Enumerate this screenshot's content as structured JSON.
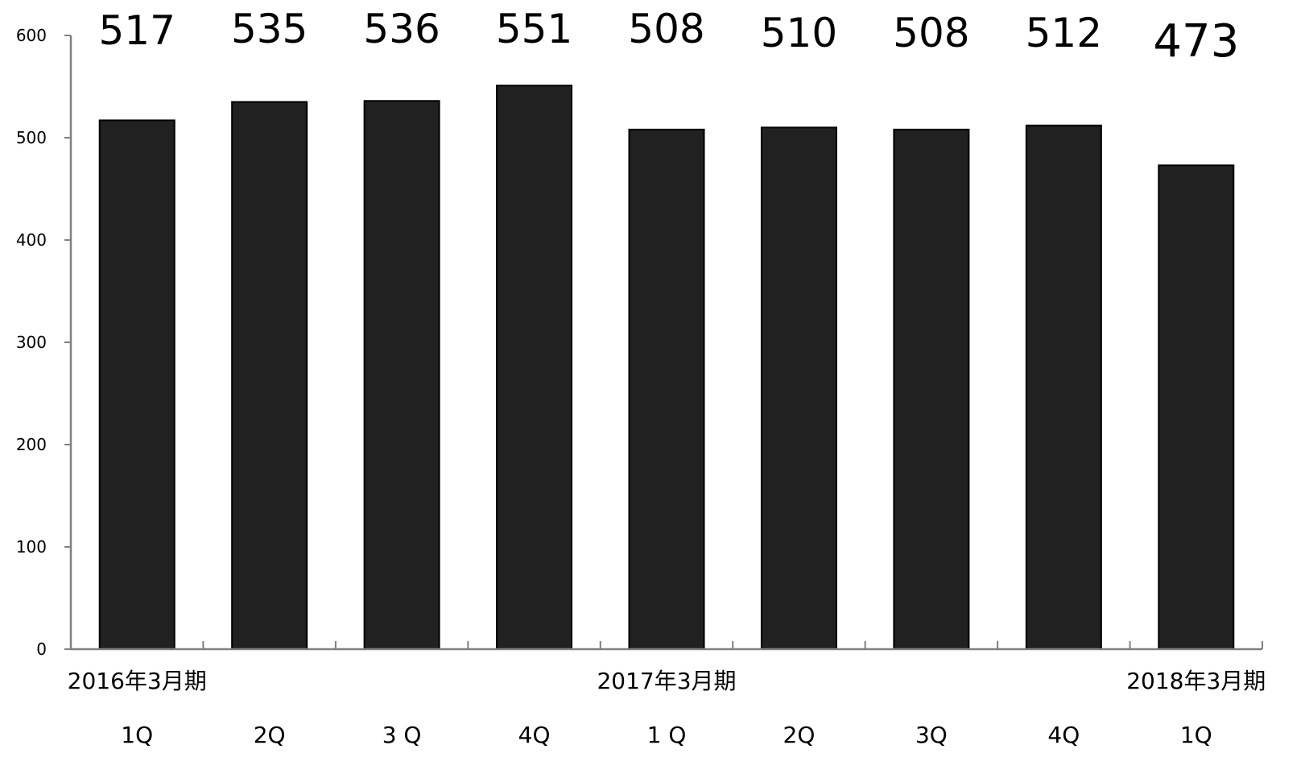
{
  "chart_data": {
    "type": "bar",
    "categories": [
      "1Q",
      "2Q",
      "3 Q",
      "4Q",
      "1 Q",
      "2Q",
      "3Q",
      "4Q",
      "1Q"
    ],
    "values": [
      517,
      535,
      536,
      551,
      508,
      510,
      508,
      512,
      473
    ],
    "data_labels": [
      "517",
      "535",
      "536",
      "551",
      "508",
      "510",
      "508",
      "512",
      "473"
    ],
    "period_labels": [
      {
        "text": "2016年3月期",
        "category_index": 0
      },
      {
        "text": "2017年3月期",
        "category_index": 4
      },
      {
        "text": "2018年3月期",
        "category_index": 8
      }
    ],
    "ylim": [
      0,
      600
    ],
    "yticks": [
      0,
      100,
      200,
      300,
      400,
      500,
      600
    ],
    "ytick_labels": [
      "0",
      "100",
      "200",
      "300",
      "400",
      "500",
      "600"
    ],
    "title": "",
    "xlabel": "",
    "ylabel": "",
    "grid": false,
    "legend": "none",
    "colors": {
      "bar": "#212121",
      "axis": "#808080"
    }
  }
}
